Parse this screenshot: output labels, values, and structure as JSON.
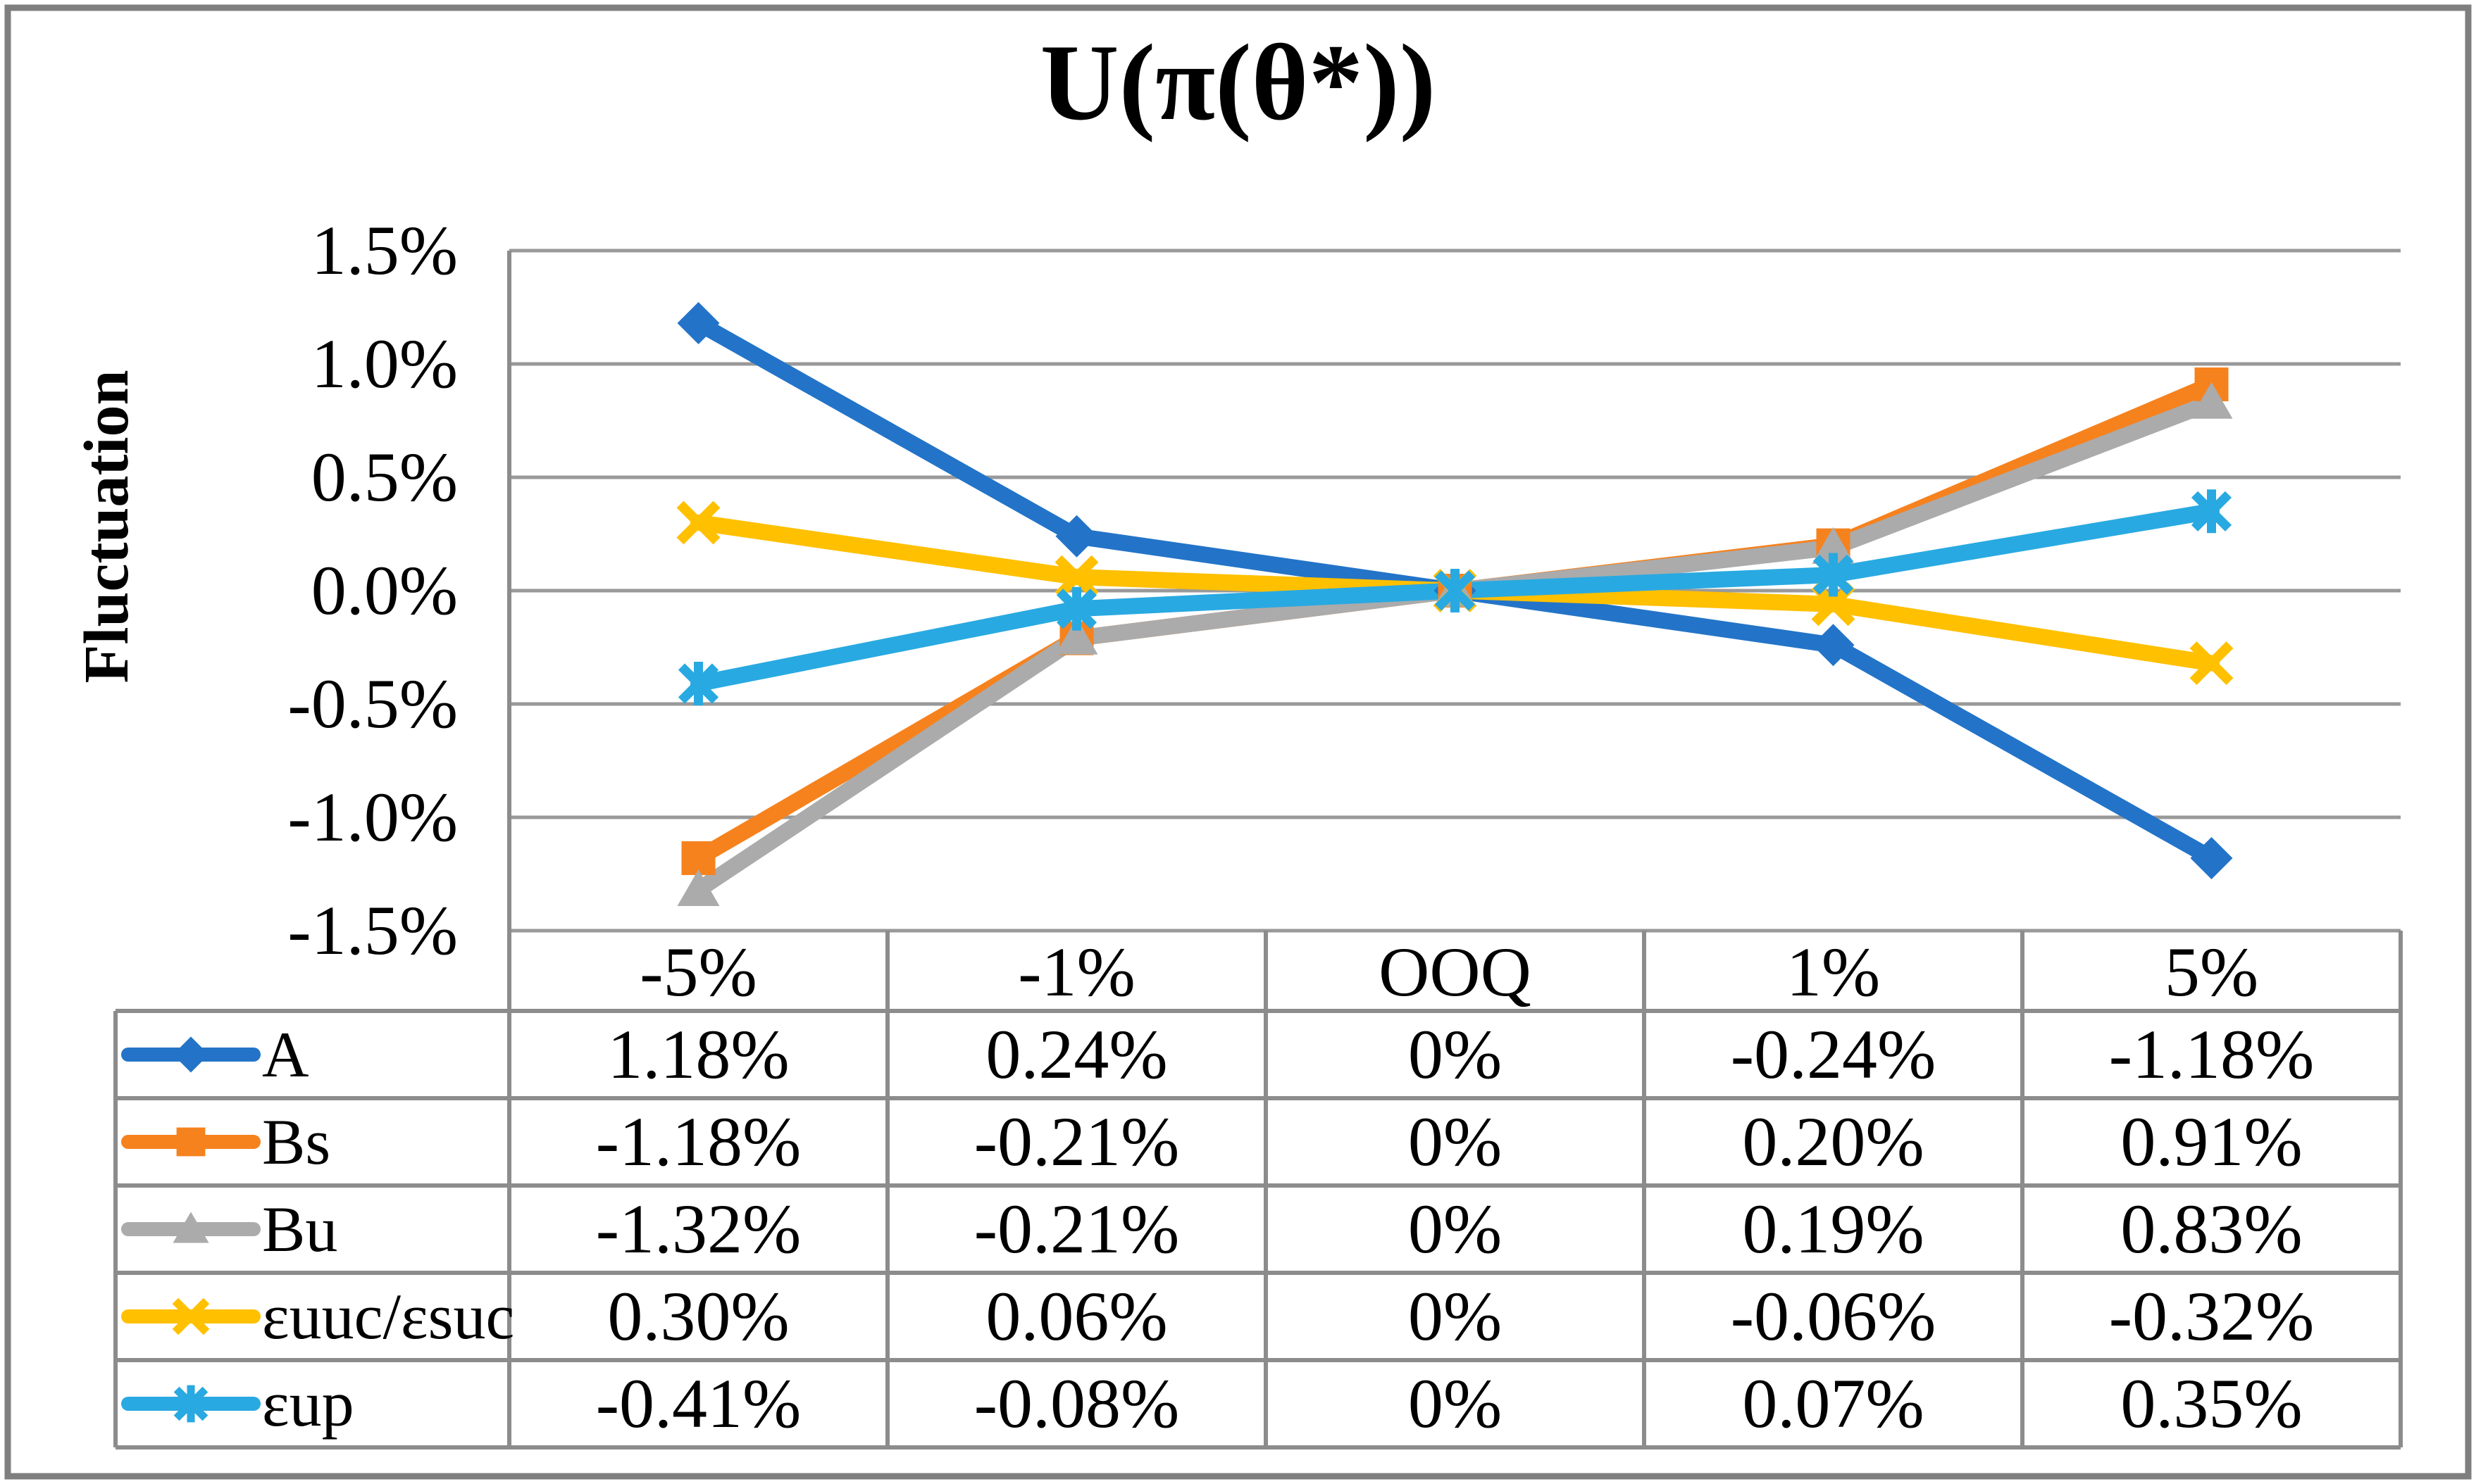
{
  "chart_data": {
    "type": "line",
    "title": "U(π(θ*))",
    "xlabel": "",
    "ylabel": "Fluctuation",
    "categories": [
      "-5%",
      "-1%",
      "OOQ",
      "1%",
      "5%"
    ],
    "ylim": [
      -1.5,
      1.5
    ],
    "grid": true,
    "legend_position": "left-column-of-data-table",
    "data_table_shown": true,
    "value_unit": "percent",
    "yticks": [
      {
        "label": "1.5%",
        "value": 1.5
      },
      {
        "label": "1.0%",
        "value": 1.0
      },
      {
        "label": "0.5%",
        "value": 0.5
      },
      {
        "label": "0.0%",
        "value": 0.0
      },
      {
        "label": "-0.5%",
        "value": -0.5
      },
      {
        "label": "-1.0%",
        "value": -1.0
      },
      {
        "label": "-1.5%",
        "value": -1.5
      }
    ],
    "series": [
      {
        "name": "A",
        "marker": "diamond",
        "color": "#2374C8",
        "values": [
          1.18,
          0.24,
          0,
          -0.24,
          -1.18
        ],
        "cells": [
          "1.18%",
          "0.24%",
          "0%",
          "-0.24%",
          "-1.18%"
        ]
      },
      {
        "name": "Bs",
        "marker": "square",
        "color": "#F6821E",
        "values": [
          -1.18,
          -0.21,
          0,
          0.2,
          0.91
        ],
        "cells": [
          "-1.18%",
          "-0.21%",
          "0%",
          "0.20%",
          "0.91%"
        ]
      },
      {
        "name": "Bu",
        "marker": "triangle",
        "color": "#ABABAB",
        "values": [
          -1.32,
          -0.21,
          0,
          0.19,
          0.83
        ],
        "cells": [
          "-1.32%",
          "-0.21%",
          "0%",
          "0.19%",
          "0.83%"
        ]
      },
      {
        "name": "εuuc/εsuc",
        "marker": "x-cross",
        "color": "#FFC000",
        "values": [
          0.3,
          0.06,
          0,
          -0.06,
          -0.32
        ],
        "cells": [
          "0.30%",
          "0.06%",
          "0%",
          "-0.06%",
          "-0.32%"
        ]
      },
      {
        "name": "εup",
        "marker": "asterisk",
        "color": "#29A9E1",
        "values": [
          -0.41,
          -0.08,
          0,
          0.07,
          0.35
        ],
        "cells": [
          "-0.41%",
          "-0.08%",
          "0%",
          "0.07%",
          "0.35%"
        ]
      }
    ],
    "colors": {
      "grid": "#999999",
      "table_border": "#8C8C8C",
      "frame": "#7F7F7F",
      "text": "#000000"
    }
  }
}
